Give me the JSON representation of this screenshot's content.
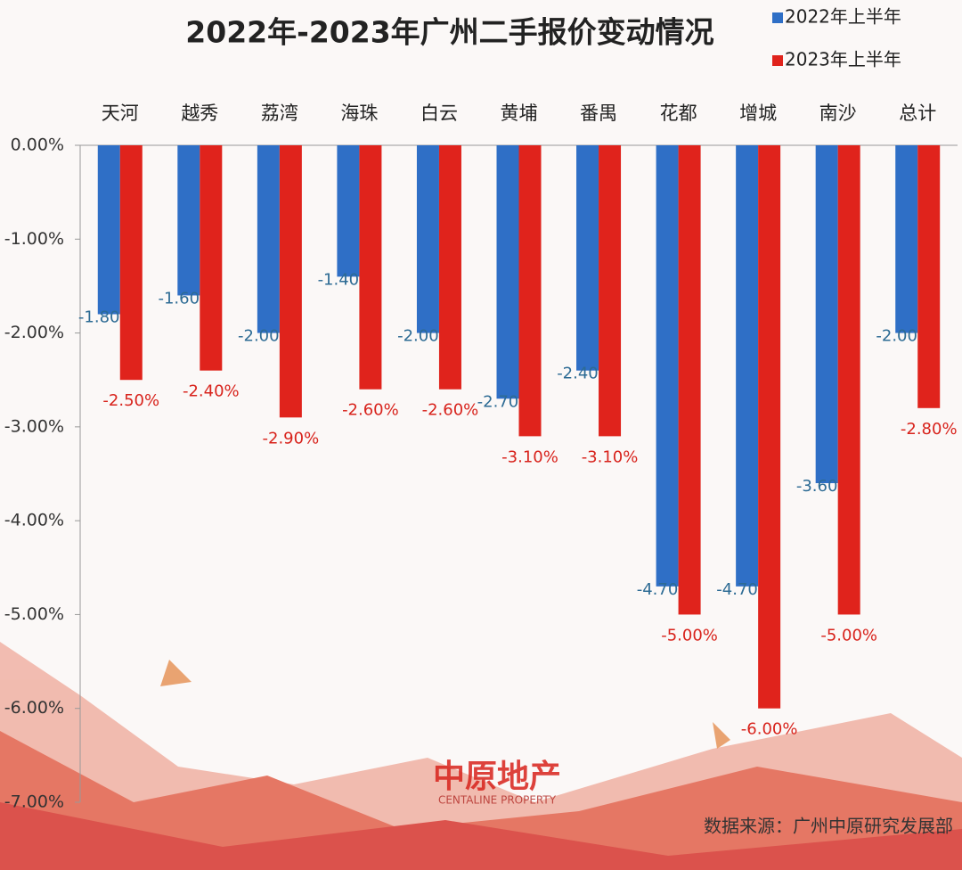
{
  "chart_data": {
    "type": "bar",
    "title": "2022年-2023年广州二手报价变动情况",
    "categories": [
      "天河",
      "越秀",
      "荔湾",
      "海珠",
      "白云",
      "黄埔",
      "番禺",
      "花都",
      "增城",
      "南沙",
      "总计"
    ],
    "series": [
      {
        "name": "2022年上半年",
        "color": "#2f6fc6",
        "values": [
          -1.8,
          -1.6,
          -2.0,
          -1.4,
          -2.0,
          -2.7,
          -2.4,
          -4.7,
          -4.7,
          -3.6,
          -2.0
        ],
        "value_labels": [
          "-1.80%",
          "-1.60%",
          "-2.00%",
          "-1.40%",
          "-2.00%",
          "-2.70%",
          "-2.40%",
          "-4.70%",
          "-4.70%",
          "-3.60%",
          "-2.00%"
        ]
      },
      {
        "name": "2023年上半年",
        "color": "#e0231c",
        "values": [
          -2.5,
          -2.4,
          -2.9,
          -2.6,
          -2.6,
          -3.1,
          -3.1,
          -5.0,
          -6.0,
          -5.0,
          -2.8
        ],
        "value_labels": [
          "-2.50%",
          "-2.40%",
          "-2.90%",
          "-2.60%",
          "-2.60%",
          "-3.10%",
          "-3.10%",
          "-5.00%",
          "-6.00%",
          "-5.00%",
          "-2.80%"
        ]
      }
    ],
    "ylim": [
      -7,
      0
    ],
    "yticks": [
      {
        "value": 0,
        "label": "0.00%"
      },
      {
        "value": -1,
        "label": "-1.00%"
      },
      {
        "value": -2,
        "label": "-2.00%"
      },
      {
        "value": -3,
        "label": "-3.00%"
      },
      {
        "value": -4,
        "label": "-4.00%"
      },
      {
        "value": -5,
        "label": "-5.00%"
      },
      {
        "value": -6,
        "label": "-6.00%"
      },
      {
        "value": -7,
        "label": "-7.00%"
      }
    ],
    "legend": "top-right",
    "watermark": "中原地产",
    "watermark_sub": "CENTALINE PROPERTY",
    "source": "数据来源：广州中原研究发展部"
  }
}
